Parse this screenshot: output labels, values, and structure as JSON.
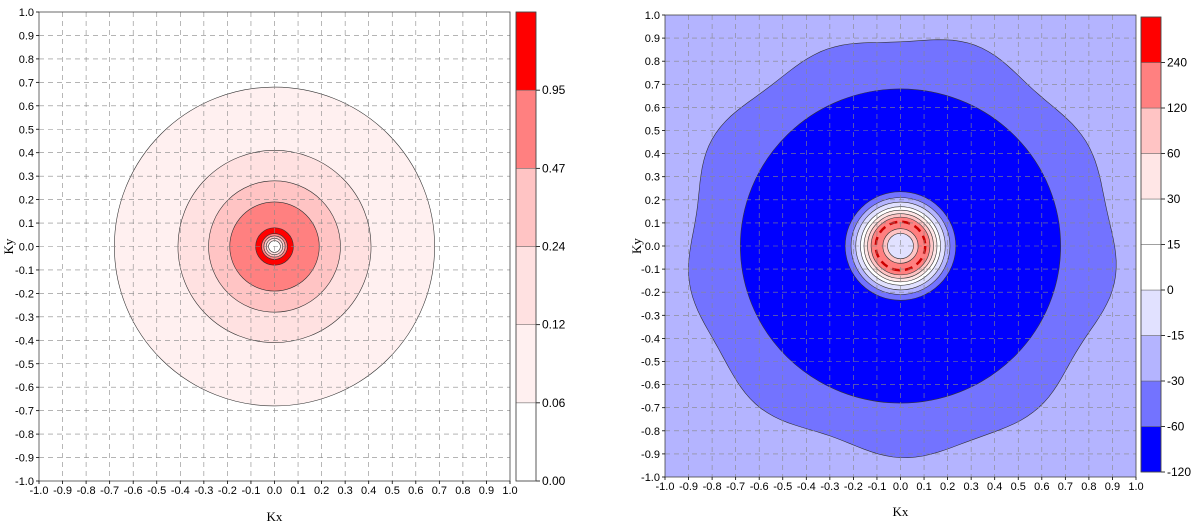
{
  "chart_data": [
    {
      "type": "contour",
      "title": "",
      "xlabel": "Kx",
      "ylabel": "Ky",
      "xlim": [
        -1.0,
        1.0
      ],
      "ylim": [
        -1.0,
        1.0
      ],
      "x_ticks": [
        "-1.0",
        "-0.9",
        "-0.8",
        "-0.7",
        "-0.6",
        "-0.5",
        "-0.4",
        "-0.3",
        "-0.2",
        "-0.1",
        "0.0",
        "0.1",
        "0.2",
        "0.3",
        "0.4",
        "0.5",
        "0.6",
        "0.7",
        "0.8",
        "0.9",
        "1.0"
      ],
      "y_ticks": [
        "-1.0",
        "-0.9",
        "-0.8",
        "-0.7",
        "-0.6",
        "-0.5",
        "-0.4",
        "-0.3",
        "-0.2",
        "-0.1",
        "0.0",
        "0.1",
        "0.2",
        "0.3",
        "0.4",
        "0.5",
        "0.6",
        "0.7",
        "0.8",
        "0.9",
        "1.0"
      ],
      "grid": true,
      "background_color": "#ffffff",
      "colorbar": {
        "levels": [
          {
            "label": "0.00",
            "color": "#ffffff"
          },
          {
            "label": "0.06",
            "color": "#fff0f0"
          },
          {
            "label": "0.12",
            "color": "#ffe1e1"
          },
          {
            "label": "0.24",
            "color": "#ffc4c4"
          },
          {
            "label": "0.47",
            "color": "#ff8080"
          },
          {
            "label": "0.95",
            "color": "#ff0000"
          }
        ]
      },
      "contours": [
        {
          "radius": 0.68,
          "color": "#fff0f0"
        },
        {
          "radius": 0.41,
          "color": "#ffe1e1"
        },
        {
          "radius": 0.28,
          "color": "#ffc4c4"
        },
        {
          "radius": 0.19,
          "color": "#ff8080"
        },
        {
          "radius": 0.08,
          "color": "#ff0000"
        },
        {
          "radius": 0.055,
          "color": "#ff8080"
        },
        {
          "radius": 0.045,
          "color": "#ffc4c4"
        },
        {
          "radius": 0.035,
          "color": "#ffe1e1"
        },
        {
          "radius": 0.025,
          "color": "#ffffff"
        }
      ]
    },
    {
      "type": "contour",
      "title": "",
      "xlabel": "Kx",
      "ylabel": "Ky",
      "xlim": [
        -1.0,
        1.0
      ],
      "ylim": [
        -1.0,
        1.0
      ],
      "x_ticks": [
        "-1.0",
        "-0.9",
        "-0.8",
        "-0.7",
        "-0.6",
        "-0.5",
        "-0.4",
        "-0.3",
        "-0.2",
        "-0.1",
        "0.0",
        "0.1",
        "0.2",
        "0.3",
        "0.4",
        "0.5",
        "0.6",
        "0.7",
        "0.8",
        "0.9",
        "1.0"
      ],
      "y_ticks": [
        "-1.0",
        "-0.9",
        "-0.8",
        "-0.7",
        "-0.6",
        "-0.5",
        "-0.4",
        "-0.3",
        "-0.2",
        "-0.1",
        "0.0",
        "0.1",
        "0.2",
        "0.3",
        "0.4",
        "0.5",
        "0.6",
        "0.7",
        "0.8",
        "0.9",
        "1.0"
      ],
      "grid": true,
      "background_color": "#b4b4ff",
      "colorbar": {
        "levels": [
          {
            "label": "-120",
            "color": "#0000ff"
          },
          {
            "label": "-60",
            "color": "#7373ff"
          },
          {
            "label": "-30",
            "color": "#b4b4ff"
          },
          {
            "label": "-15",
            "color": "#e1e1ff"
          },
          {
            "label": "0",
            "color": "#ffffff"
          },
          {
            "label": "15",
            "color": "#ffffff"
          },
          {
            "label": "30",
            "color": "#ffe6e6"
          },
          {
            "label": "60",
            "color": "#ffc4c4"
          },
          {
            "label": "120",
            "color": "#ff8080"
          },
          {
            "label": "240",
            "color": "#ff0000"
          }
        ]
      },
      "contours": [
        {
          "radius": 0.9,
          "color": "#7373ff",
          "wavy": true
        },
        {
          "radius": 0.68,
          "color": "#0000ff"
        },
        {
          "radius": 0.235,
          "color": "#7373ff"
        },
        {
          "radius": 0.21,
          "color": "#b4b4ff"
        },
        {
          "radius": 0.19,
          "color": "#e1e1ff"
        },
        {
          "radius": 0.17,
          "color": "#ffffff"
        },
        {
          "radius": 0.155,
          "color": "#ffe6e6"
        },
        {
          "radius": 0.14,
          "color": "#ffc4c4"
        },
        {
          "radius": 0.125,
          "color": "#ff8080"
        },
        {
          "radius": 0.105,
          "color": "#ff8080",
          "dashed": true
        },
        {
          "radius": 0.075,
          "color": "#ffc4c4"
        },
        {
          "radius": 0.055,
          "color": "#e1e1ff"
        }
      ]
    }
  ]
}
